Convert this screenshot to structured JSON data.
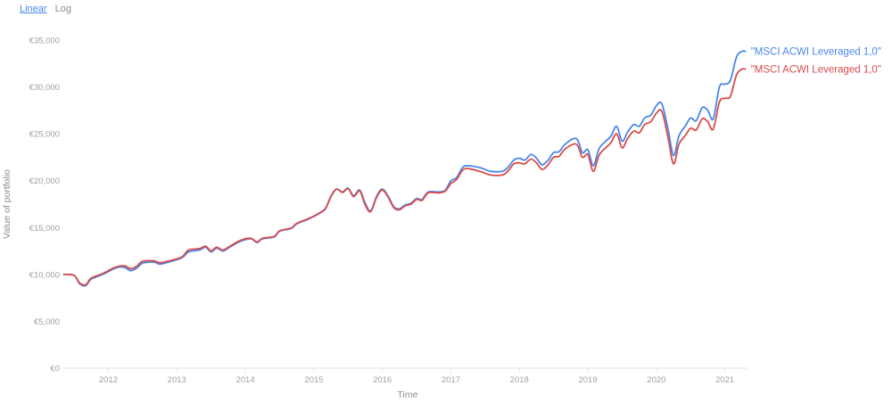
{
  "scale_toggle": {
    "linear": "Linear",
    "log": "Log",
    "selected": "Linear"
  },
  "colors": {
    "series_1": "#4a86e8",
    "series_2": "#d84b4b",
    "axis": "#e4e4e4"
  },
  "chart_data": {
    "type": "line",
    "title": "",
    "xlabel": "Time",
    "ylabel": "Value of portfolio",
    "xlim": [
      2011.33,
      2021.33
    ],
    "ylim": [
      0,
      35000
    ],
    "x_ticks": [
      2012,
      2013,
      2014,
      2015,
      2016,
      2017,
      2018,
      2019,
      2020,
      2021
    ],
    "x_tick_labels": [
      "2012",
      "2013",
      "2014",
      "2015",
      "2016",
      "2017",
      "2018",
      "2019",
      "2020",
      "2021"
    ],
    "y_ticks": [
      0,
      5000,
      10000,
      15000,
      20000,
      25000,
      30000,
      35000
    ],
    "y_tick_labels": [
      "€0",
      "€5,000",
      "€10,000",
      "€15,000",
      "€20,000",
      "€25,000",
      "€30,000",
      "€35,000"
    ],
    "grid": false,
    "legend": "right-end",
    "series": [
      {
        "name": "\"MSCI ACWI Leveraged 1,0\"",
        "color": "#4a86e8",
        "points": [
          [
            2011.35,
            10000
          ],
          [
            2011.5,
            9900
          ],
          [
            2011.58,
            9000
          ],
          [
            2011.67,
            8800
          ],
          [
            2011.75,
            9500
          ],
          [
            2011.92,
            10000
          ],
          [
            2012.08,
            10600
          ],
          [
            2012.17,
            10800
          ],
          [
            2012.25,
            10700
          ],
          [
            2012.33,
            10400
          ],
          [
            2012.42,
            10700
          ],
          [
            2012.5,
            11200
          ],
          [
            2012.67,
            11300
          ],
          [
            2012.75,
            11100
          ],
          [
            2012.92,
            11400
          ],
          [
            2013.08,
            11800
          ],
          [
            2013.17,
            12400
          ],
          [
            2013.33,
            12600
          ],
          [
            2013.42,
            12900
          ],
          [
            2013.5,
            12400
          ],
          [
            2013.58,
            12800
          ],
          [
            2013.67,
            12500
          ],
          [
            2013.75,
            12800
          ],
          [
            2013.92,
            13500
          ],
          [
            2014.08,
            13800
          ],
          [
            2014.17,
            13400
          ],
          [
            2014.25,
            13800
          ],
          [
            2014.42,
            14000
          ],
          [
            2014.5,
            14600
          ],
          [
            2014.67,
            14900
          ],
          [
            2014.75,
            15400
          ],
          [
            2014.92,
            15900
          ],
          [
            2015.08,
            16500
          ],
          [
            2015.17,
            17000
          ],
          [
            2015.25,
            18300
          ],
          [
            2015.33,
            19100
          ],
          [
            2015.42,
            18800
          ],
          [
            2015.5,
            19200
          ],
          [
            2015.58,
            18400
          ],
          [
            2015.67,
            19000
          ],
          [
            2015.75,
            17600
          ],
          [
            2015.83,
            16800
          ],
          [
            2015.92,
            18400
          ],
          [
            2016.0,
            19100
          ],
          [
            2016.08,
            18400
          ],
          [
            2016.17,
            17200
          ],
          [
            2016.25,
            17000
          ],
          [
            2016.33,
            17400
          ],
          [
            2016.42,
            17600
          ],
          [
            2016.5,
            18100
          ],
          [
            2016.58,
            18000
          ],
          [
            2016.67,
            18800
          ],
          [
            2016.83,
            18800
          ],
          [
            2016.92,
            19000
          ],
          [
            2017.0,
            20000
          ],
          [
            2017.08,
            20300
          ],
          [
            2017.17,
            21400
          ],
          [
            2017.25,
            21600
          ],
          [
            2017.42,
            21400
          ],
          [
            2017.5,
            21200
          ],
          [
            2017.58,
            21000
          ],
          [
            2017.75,
            21000
          ],
          [
            2017.83,
            21400
          ],
          [
            2017.92,
            22200
          ],
          [
            2018.0,
            22400
          ],
          [
            2018.08,
            22200
          ],
          [
            2018.17,
            22800
          ],
          [
            2018.25,
            22400
          ],
          [
            2018.33,
            21700
          ],
          [
            2018.42,
            22200
          ],
          [
            2018.5,
            23000
          ],
          [
            2018.58,
            23100
          ],
          [
            2018.67,
            23900
          ],
          [
            2018.83,
            24500
          ],
          [
            2018.92,
            23000
          ],
          [
            2019.0,
            23300
          ],
          [
            2019.08,
            21600
          ],
          [
            2019.17,
            23500
          ],
          [
            2019.33,
            24700
          ],
          [
            2019.42,
            25800
          ],
          [
            2019.5,
            24200
          ],
          [
            2019.58,
            25200
          ],
          [
            2019.67,
            26000
          ],
          [
            2019.75,
            25800
          ],
          [
            2019.83,
            26700
          ],
          [
            2019.92,
            27000
          ],
          [
            2020.0,
            28000
          ],
          [
            2020.08,
            28200
          ],
          [
            2020.17,
            25500
          ],
          [
            2020.25,
            22700
          ],
          [
            2020.33,
            24800
          ],
          [
            2020.42,
            25800
          ],
          [
            2020.5,
            26700
          ],
          [
            2020.58,
            26400
          ],
          [
            2020.67,
            27800
          ],
          [
            2020.75,
            27500
          ],
          [
            2020.83,
            26600
          ],
          [
            2020.92,
            30000
          ],
          [
            2021.0,
            30300
          ],
          [
            2021.08,
            30700
          ],
          [
            2021.17,
            33200
          ],
          [
            2021.25,
            33800
          ],
          [
            2021.3,
            33800
          ]
        ]
      },
      {
        "name": "\"MSCI ACWI Leveraged 1,0\"",
        "color": "#d84b4b",
        "points": [
          [
            2011.35,
            10000
          ],
          [
            2011.5,
            9900
          ],
          [
            2011.58,
            9100
          ],
          [
            2011.67,
            8900
          ],
          [
            2011.75,
            9600
          ],
          [
            2011.92,
            10100
          ],
          [
            2012.08,
            10700
          ],
          [
            2012.17,
            10900
          ],
          [
            2012.25,
            10900
          ],
          [
            2012.33,
            10600
          ],
          [
            2012.42,
            10900
          ],
          [
            2012.5,
            11400
          ],
          [
            2012.67,
            11450
          ],
          [
            2012.75,
            11250
          ],
          [
            2012.92,
            11500
          ],
          [
            2013.08,
            11900
          ],
          [
            2013.17,
            12600
          ],
          [
            2013.33,
            12750
          ],
          [
            2013.42,
            13000
          ],
          [
            2013.5,
            12500
          ],
          [
            2013.58,
            12900
          ],
          [
            2013.67,
            12600
          ],
          [
            2013.75,
            12900
          ],
          [
            2013.92,
            13600
          ],
          [
            2014.08,
            13850
          ],
          [
            2014.17,
            13450
          ],
          [
            2014.25,
            13850
          ],
          [
            2014.42,
            14050
          ],
          [
            2014.5,
            14650
          ],
          [
            2014.67,
            14950
          ],
          [
            2014.75,
            15450
          ],
          [
            2014.92,
            15950
          ],
          [
            2015.08,
            16550
          ],
          [
            2015.17,
            17050
          ],
          [
            2015.25,
            18350
          ],
          [
            2015.33,
            19100
          ],
          [
            2015.42,
            18750
          ],
          [
            2015.5,
            19150
          ],
          [
            2015.58,
            18300
          ],
          [
            2015.67,
            18900
          ],
          [
            2015.75,
            17400
          ],
          [
            2015.83,
            16700
          ],
          [
            2015.92,
            18300
          ],
          [
            2016.0,
            19000
          ],
          [
            2016.08,
            18300
          ],
          [
            2016.17,
            17100
          ],
          [
            2016.25,
            16900
          ],
          [
            2016.33,
            17300
          ],
          [
            2016.42,
            17500
          ],
          [
            2016.5,
            18000
          ],
          [
            2016.58,
            17900
          ],
          [
            2016.67,
            18700
          ],
          [
            2016.83,
            18700
          ],
          [
            2016.92,
            18900
          ],
          [
            2017.0,
            19700
          ],
          [
            2017.08,
            20100
          ],
          [
            2017.17,
            21100
          ],
          [
            2017.25,
            21300
          ],
          [
            2017.42,
            21000
          ],
          [
            2017.5,
            20800
          ],
          [
            2017.58,
            20600
          ],
          [
            2017.75,
            20600
          ],
          [
            2017.83,
            21000
          ],
          [
            2017.92,
            21800
          ],
          [
            2018.0,
            21900
          ],
          [
            2018.08,
            21800
          ],
          [
            2018.17,
            22300
          ],
          [
            2018.25,
            21900
          ],
          [
            2018.33,
            21200
          ],
          [
            2018.42,
            21700
          ],
          [
            2018.5,
            22500
          ],
          [
            2018.58,
            22600
          ],
          [
            2018.67,
            23400
          ],
          [
            2018.83,
            23900
          ],
          [
            2018.92,
            22500
          ],
          [
            2019.0,
            22800
          ],
          [
            2019.08,
            21000
          ],
          [
            2019.17,
            22800
          ],
          [
            2019.33,
            24000
          ],
          [
            2019.42,
            25000
          ],
          [
            2019.5,
            23500
          ],
          [
            2019.58,
            24500
          ],
          [
            2019.67,
            25300
          ],
          [
            2019.75,
            25100
          ],
          [
            2019.83,
            26000
          ],
          [
            2019.92,
            26300
          ],
          [
            2020.0,
            27200
          ],
          [
            2020.08,
            27400
          ],
          [
            2020.17,
            24600
          ],
          [
            2020.25,
            21800
          ],
          [
            2020.33,
            23900
          ],
          [
            2020.42,
            24800
          ],
          [
            2020.5,
            25600
          ],
          [
            2020.58,
            25400
          ],
          [
            2020.67,
            26600
          ],
          [
            2020.75,
            26300
          ],
          [
            2020.83,
            25500
          ],
          [
            2020.92,
            28400
          ],
          [
            2021.0,
            28800
          ],
          [
            2021.08,
            29000
          ],
          [
            2021.17,
            31300
          ],
          [
            2021.25,
            31900
          ],
          [
            2021.3,
            31900
          ]
        ]
      }
    ]
  }
}
